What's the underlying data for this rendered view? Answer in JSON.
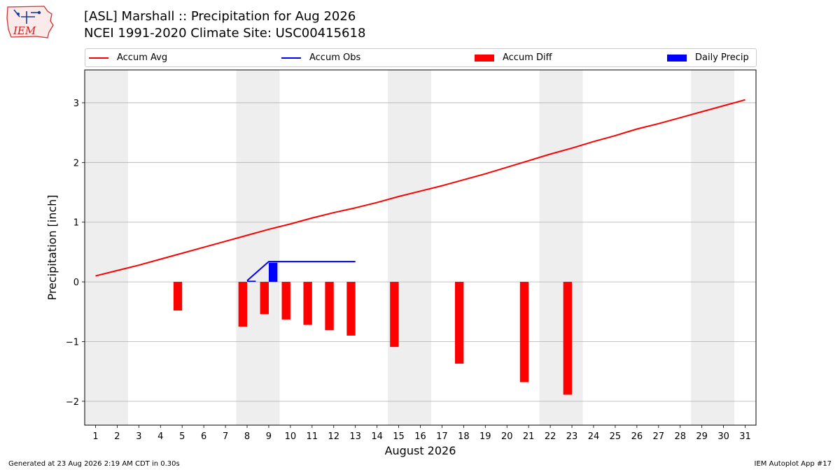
{
  "header": {
    "logo_text": "IEM",
    "title_line1": "[ASL] Marshall :: Precipitation for Aug 2026",
    "title_line2": "NCEI 1991-2020 Climate Site: USC00415618"
  },
  "legend": [
    {
      "label": "Accum Avg",
      "kind": "line",
      "color": "#ff0000"
    },
    {
      "label": "Accum Obs",
      "kind": "line",
      "color": "#0000ff"
    },
    {
      "label": "Accum Diff",
      "kind": "box",
      "color": "#ff0000"
    },
    {
      "label": "Daily Precip",
      "kind": "box",
      "color": "#0000ff"
    }
  ],
  "footer": {
    "left": "Generated at 23 Aug 2026 2:19 AM CDT in 0.30s",
    "right": "IEM Autoplot App #17"
  },
  "colors": {
    "accum_avg": "#ff0000",
    "accum_obs": "#0000ff",
    "accum_diff": "#ff0000",
    "daily_precip": "#0000ff",
    "weekend_shade": "#eeeeee",
    "grid": "#b0b0b0"
  },
  "chart_data": {
    "type": "bar",
    "xlabel": "August 2026",
    "ylabel": "Precipitation [inch]",
    "xlim": [
      0.5,
      31.5
    ],
    "ylim": [
      -2.4,
      3.55
    ],
    "x_ticks": [
      1,
      2,
      3,
      4,
      5,
      6,
      7,
      8,
      9,
      10,
      11,
      12,
      13,
      14,
      15,
      16,
      17,
      18,
      19,
      20,
      21,
      22,
      23,
      24,
      25,
      26,
      27,
      28,
      29,
      30,
      31
    ],
    "y_ticks": [
      -2,
      -1,
      0,
      1,
      2,
      3
    ],
    "y_tick_labels": [
      "−2",
      "−1",
      "0",
      "1",
      "2",
      "3"
    ],
    "grid": "horizontal",
    "weekend_bands": [
      [
        1,
        2
      ],
      [
        8,
        9
      ],
      [
        15,
        16
      ],
      [
        22,
        23
      ],
      [
        29,
        30
      ]
    ],
    "accum_avg": {
      "x": [
        1,
        2,
        3,
        4,
        5,
        6,
        7,
        8,
        9,
        10,
        11,
        12,
        13,
        14,
        15,
        16,
        17,
        18,
        19,
        20,
        21,
        22,
        23,
        24,
        25,
        26,
        27,
        28,
        29,
        30,
        31
      ],
      "y": [
        0.1,
        0.19,
        0.28,
        0.38,
        0.48,
        0.58,
        0.68,
        0.78,
        0.88,
        0.97,
        1.07,
        1.16,
        1.24,
        1.33,
        1.43,
        1.52,
        1.61,
        1.71,
        1.81,
        1.92,
        2.03,
        2.14,
        2.24,
        2.35,
        2.45,
        2.56,
        2.65,
        2.75,
        2.85,
        2.95,
        3.05
      ]
    },
    "accum_obs": {
      "x": [
        8,
        9,
        10,
        11,
        12,
        13
      ],
      "y": [
        0.02,
        0.34,
        0.34,
        0.34,
        0.34,
        0.34
      ]
    },
    "daily_precip": {
      "x": [
        8,
        9
      ],
      "y": [
        0.02,
        0.32
      ]
    },
    "accum_diff": {
      "x": [
        5,
        8,
        9,
        10,
        11,
        12,
        13,
        15,
        18,
        21,
        23
      ],
      "y": [
        -0.48,
        -0.75,
        -0.54,
        -0.63,
        -0.72,
        -0.81,
        -0.9,
        -1.09,
        -1.37,
        -1.68,
        -1.89
      ]
    }
  }
}
